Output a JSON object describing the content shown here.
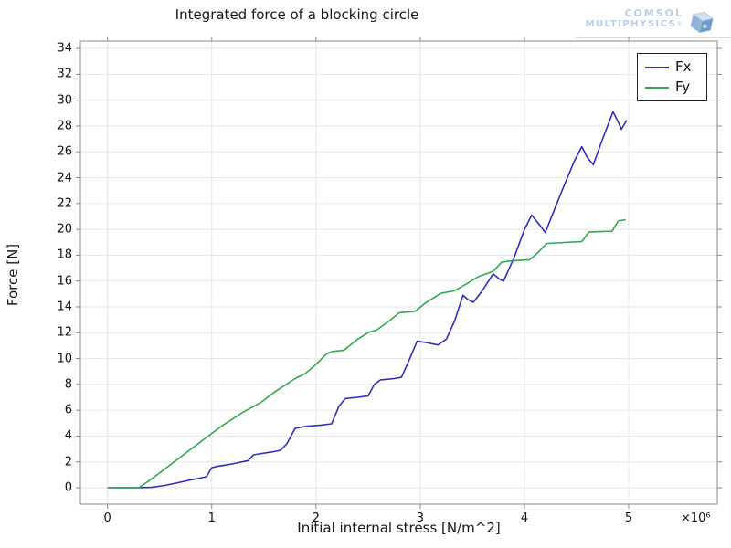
{
  "logo": {
    "line1": "COMSOL",
    "line2": "MULTIPHYSICS",
    "trademark": "®"
  },
  "chart_data": {
    "type": "line",
    "title": "Integrated force of a blocking circle",
    "xlabel": "Initial internal stress [N/m^2]",
    "ylabel": "Force [N]",
    "x_exponent_label": "×10⁶",
    "xlim": [
      -0.26,
      5.85
    ],
    "ylim": [
      -1.27,
      34.57
    ],
    "xticks": [
      0,
      1,
      2,
      3,
      4,
      5
    ],
    "yticks": [
      0,
      2,
      4,
      6,
      8,
      10,
      12,
      14,
      16,
      18,
      20,
      22,
      24,
      26,
      28,
      30,
      32,
      34
    ],
    "grid": true,
    "legend_position": "top-right",
    "frame_color": "#8a8a8a",
    "grid_color": "#e6e6e6",
    "series": [
      {
        "name": "Fx",
        "color": "#2e2ebe",
        "points": [
          [
            0,
            0
          ],
          [
            0.3,
            0
          ],
          [
            0.42,
            0.03
          ],
          [
            0.55,
            0.18
          ],
          [
            0.65,
            0.35
          ],
          [
            0.8,
            0.6
          ],
          [
            0.95,
            0.85
          ],
          [
            1.0,
            1.55
          ],
          [
            1.05,
            1.65
          ],
          [
            1.2,
            1.85
          ],
          [
            1.35,
            2.1
          ],
          [
            1.4,
            2.55
          ],
          [
            1.48,
            2.65
          ],
          [
            1.6,
            2.8
          ],
          [
            1.66,
            2.9
          ],
          [
            1.72,
            3.4
          ],
          [
            1.8,
            4.6
          ],
          [
            1.9,
            4.75
          ],
          [
            2.05,
            4.85
          ],
          [
            2.15,
            4.95
          ],
          [
            2.22,
            6.3
          ],
          [
            2.28,
            6.9
          ],
          [
            2.4,
            7.0
          ],
          [
            2.5,
            7.1
          ],
          [
            2.56,
            8.0
          ],
          [
            2.62,
            8.35
          ],
          [
            2.75,
            8.45
          ],
          [
            2.82,
            8.55
          ],
          [
            2.9,
            10.0
          ],
          [
            2.97,
            11.35
          ],
          [
            3.05,
            11.25
          ],
          [
            3.17,
            11.05
          ],
          [
            3.25,
            11.5
          ],
          [
            3.33,
            12.9
          ],
          [
            3.41,
            14.9
          ],
          [
            3.46,
            14.55
          ],
          [
            3.51,
            14.35
          ],
          [
            3.6,
            15.3
          ],
          [
            3.7,
            16.55
          ],
          [
            3.76,
            16.15
          ],
          [
            3.8,
            16.0
          ],
          [
            3.9,
            17.8
          ],
          [
            4.0,
            20.0
          ],
          [
            4.07,
            21.1
          ],
          [
            4.14,
            20.4
          ],
          [
            4.2,
            19.75
          ],
          [
            4.35,
            22.8
          ],
          [
            4.48,
            25.3
          ],
          [
            4.55,
            26.4
          ],
          [
            4.6,
            25.6
          ],
          [
            4.66,
            25.0
          ],
          [
            4.75,
            27.0
          ],
          [
            4.85,
            29.1
          ],
          [
            4.9,
            28.3
          ],
          [
            4.93,
            27.75
          ],
          [
            4.98,
            28.45
          ]
        ]
      },
      {
        "name": "Fy",
        "color": "#2fa84f",
        "points": [
          [
            0,
            0
          ],
          [
            0.3,
            0
          ],
          [
            0.4,
            0.55
          ],
          [
            0.55,
            1.45
          ],
          [
            0.72,
            2.5
          ],
          [
            0.9,
            3.6
          ],
          [
            1.1,
            4.8
          ],
          [
            1.3,
            5.85
          ],
          [
            1.47,
            6.6
          ],
          [
            1.6,
            7.4
          ],
          [
            1.8,
            8.45
          ],
          [
            1.9,
            8.85
          ],
          [
            2.0,
            9.55
          ],
          [
            2.1,
            10.35
          ],
          [
            2.16,
            10.55
          ],
          [
            2.27,
            10.65
          ],
          [
            2.4,
            11.5
          ],
          [
            2.51,
            12.05
          ],
          [
            2.58,
            12.2
          ],
          [
            2.7,
            12.9
          ],
          [
            2.8,
            13.55
          ],
          [
            2.95,
            13.65
          ],
          [
            3.05,
            14.3
          ],
          [
            3.2,
            15.05
          ],
          [
            3.33,
            15.25
          ],
          [
            3.45,
            15.8
          ],
          [
            3.56,
            16.35
          ],
          [
            3.7,
            16.75
          ],
          [
            3.78,
            17.45
          ],
          [
            3.85,
            17.55
          ],
          [
            4.05,
            17.65
          ],
          [
            4.13,
            18.2
          ],
          [
            4.21,
            18.9
          ],
          [
            4.3,
            18.95
          ],
          [
            4.55,
            19.05
          ],
          [
            4.62,
            19.8
          ],
          [
            4.84,
            19.85
          ],
          [
            4.9,
            20.65
          ],
          [
            4.97,
            20.75
          ]
        ]
      }
    ]
  }
}
